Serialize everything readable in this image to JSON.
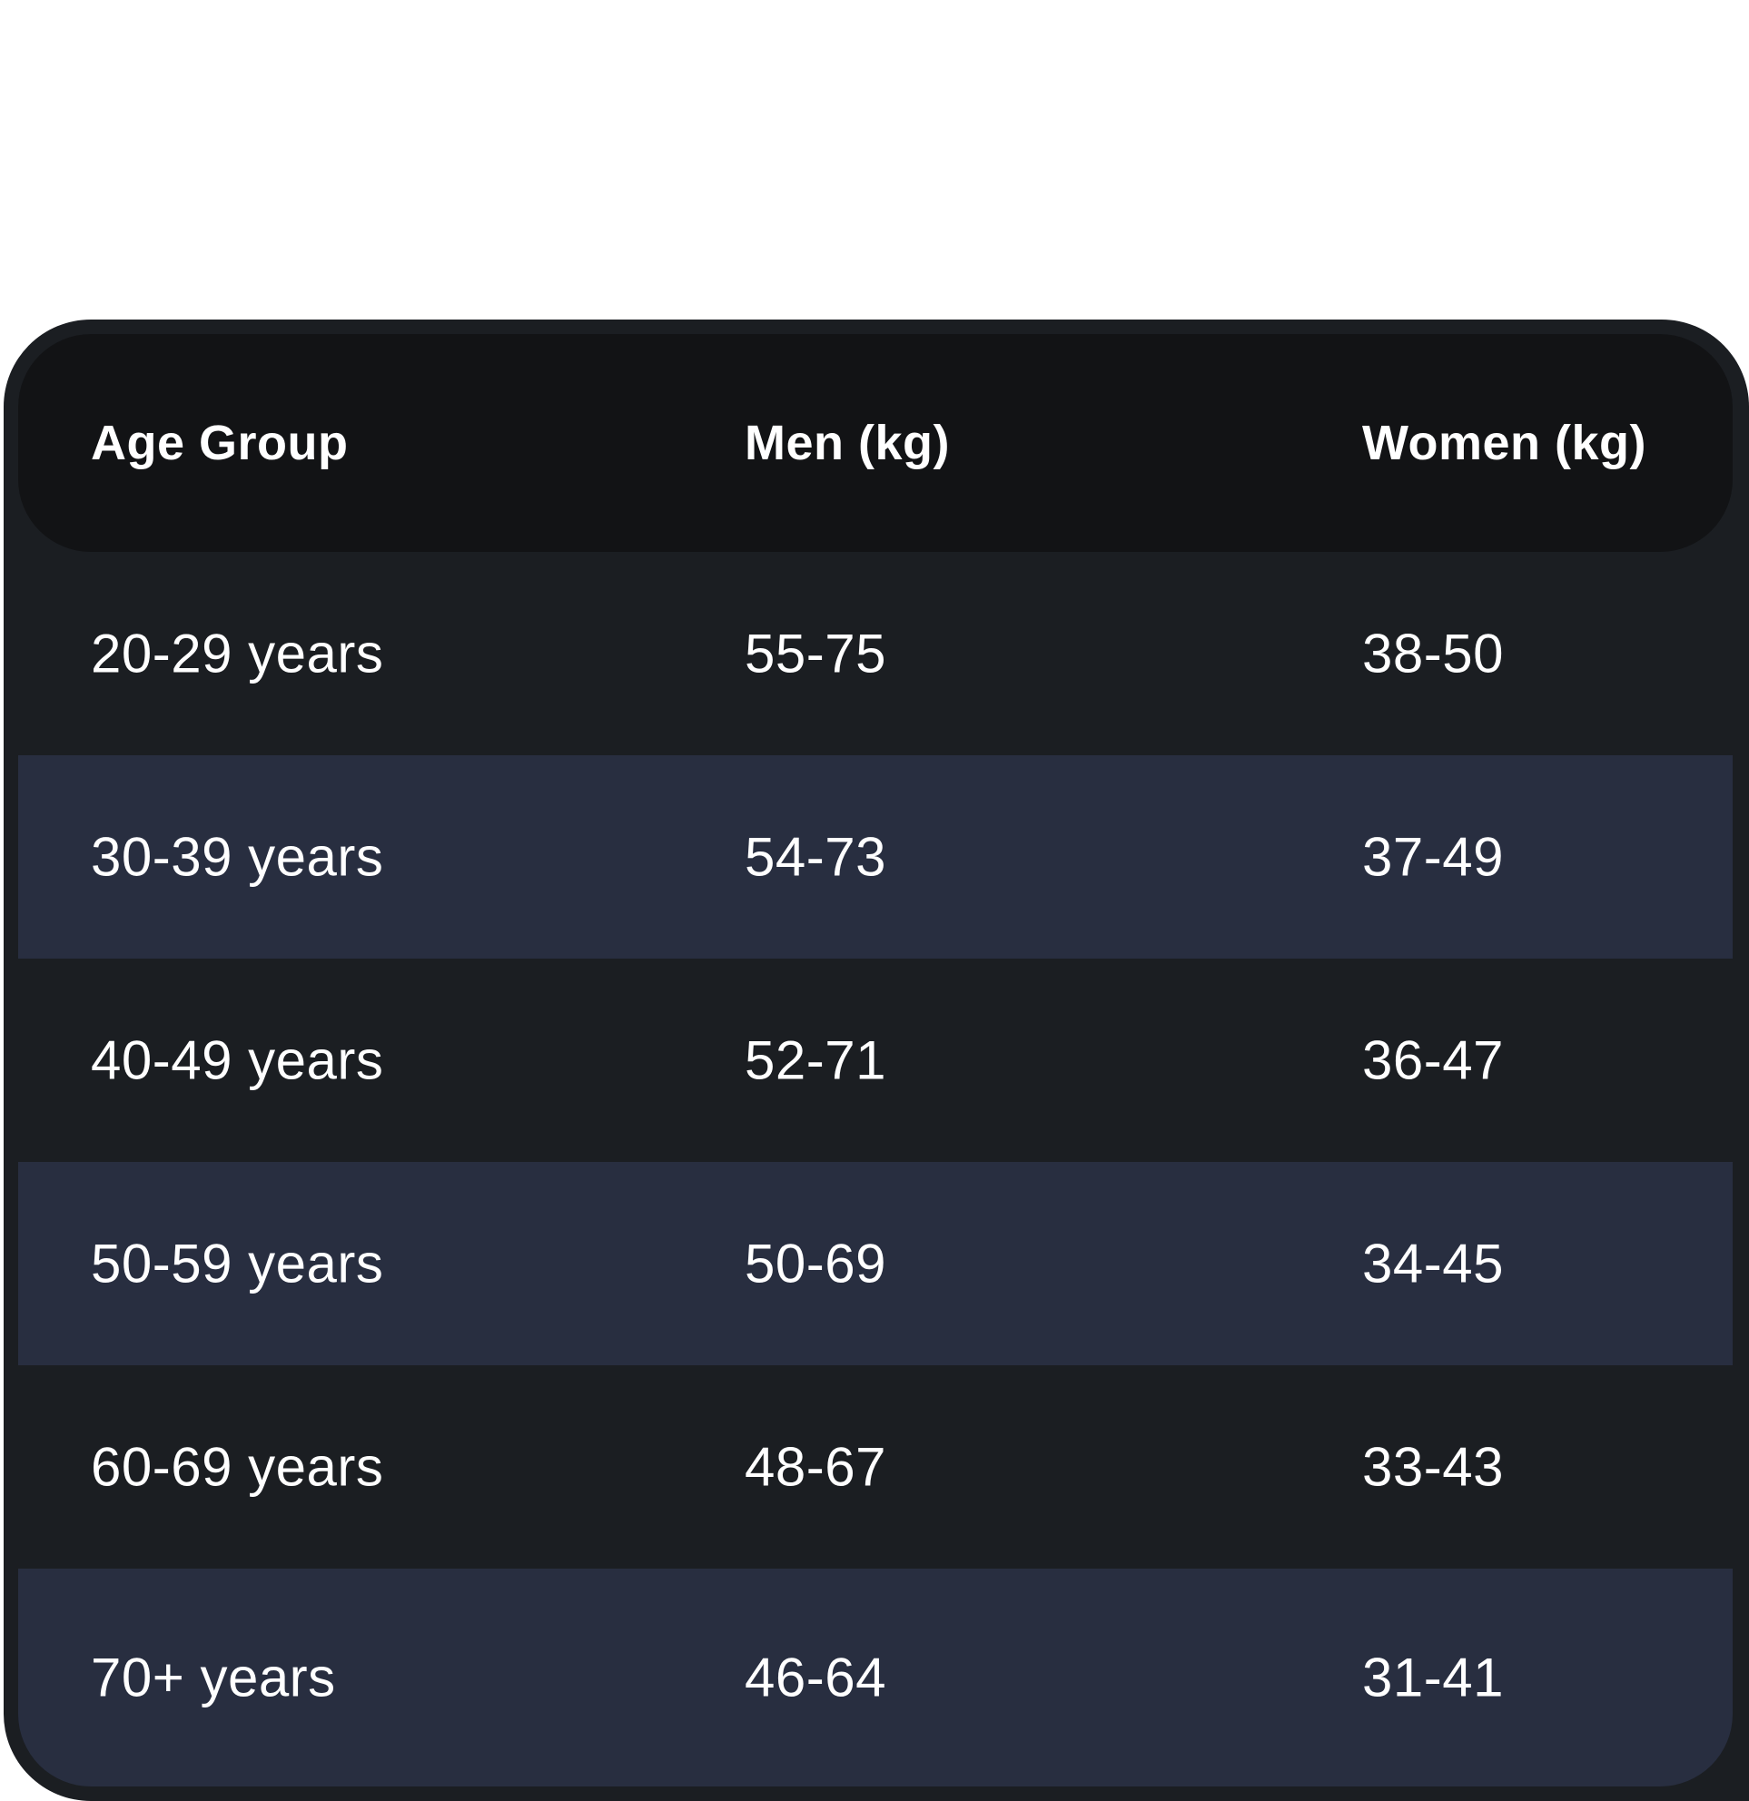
{
  "table": {
    "headers": [
      "Age Group",
      "Men (kg)",
      "Women (kg)"
    ],
    "rows": [
      {
        "age": "20-29 years",
        "men": "55-75",
        "women": "38-50"
      },
      {
        "age": "30-39 years",
        "men": "54-73",
        "women": "37-49"
      },
      {
        "age": "40-49 years",
        "men": "52-71",
        "women": "36-47"
      },
      {
        "age": "50-59 years",
        "men": "50-69",
        "women": "34-45"
      },
      {
        "age": "60-69 years",
        "men": "48-67",
        "women": "33-43"
      },
      {
        "age": "70+ years",
        "men": "46-64",
        "women": "31-41"
      }
    ]
  },
  "colors": {
    "card_border": "#1b1e22",
    "header_bg": "#121315",
    "row_dark": "#1b1e22",
    "row_light": "#282e40",
    "text": "#ffffff"
  }
}
